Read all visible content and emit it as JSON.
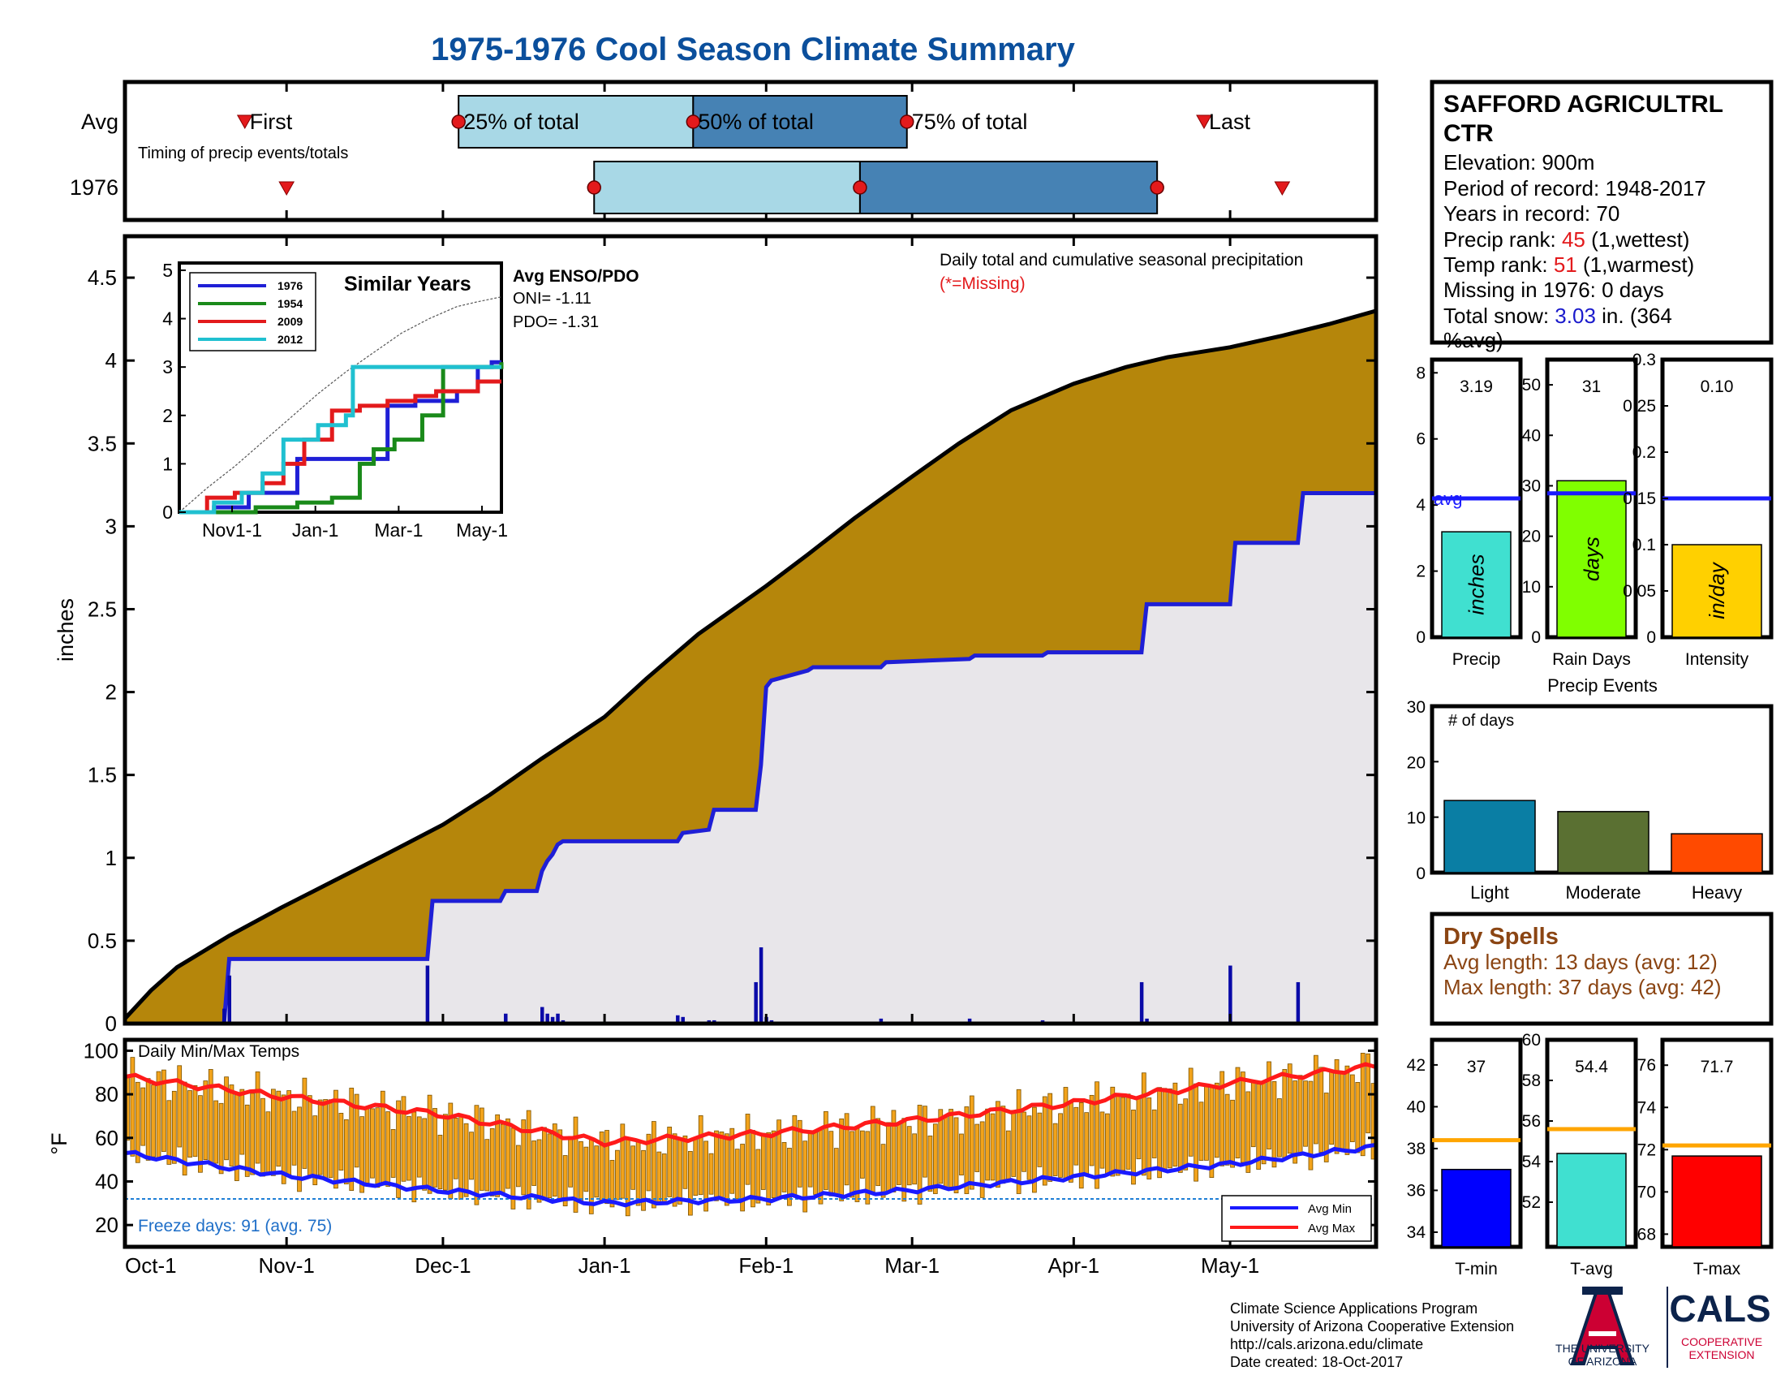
{
  "title": "1975-1976 Cool Season Climate Summary",
  "colors": {
    "title": "#0b4f9c",
    "cum_fill": "#b5860b",
    "obs_fill": "#e8e6ea",
    "obs_line": "#1f1fd6",
    "daily_bar": "#0a0aa8",
    "light_blue": "#a8d8e6",
    "steel_blue": "#4682b4",
    "red": "#e31a1c",
    "orange_bar": "#f2a31b",
    "avg_max": "#ff1a1a",
    "avg_min": "#1a1aff",
    "freeze_line": "#1f7fd6",
    "rank_red": "#e31a1c",
    "snow_blue": "#1a1acc",
    "dry_brown": "#8b4513",
    "precip_bar": "#40e0d0",
    "raindays_bar": "#80ff00",
    "intensity_bar": "#ffd000",
    "light_event": "#0a7ea4",
    "moderate_event": "#5a7032",
    "heavy_event": "#ff4a00",
    "tmin_bar": "#0000ff",
    "tavg_bar": "#40e0d0",
    "tmax_bar": "#ff0000",
    "avg_line_orange": "#ffa500",
    "ua_red": "#cc0033",
    "ua_navy": "#0c234b"
  },
  "timing": {
    "row_labels": [
      "Avg",
      "1976"
    ],
    "note": "Timing of precip events/totals",
    "labels": {
      "first": "First",
      "p25": "25% of total",
      "p50": "50% of total",
      "p75": "75% of total",
      "last": "Last"
    },
    "avg_days": {
      "first": 23,
      "p25": 64,
      "p50": 109,
      "p75": 150,
      "last": 207
    },
    "y1976_days": {
      "first": 31,
      "p25": 90,
      "p50": 141,
      "p75": 198,
      "last": 222
    }
  },
  "main_chart": {
    "ylabel": "inches",
    "annotation_line1": "Daily total and cumulative seasonal precipitation",
    "annotation_line2": "(*=Missing)",
    "ylim": [
      0,
      4.75
    ],
    "yticks": [
      "0",
      "0.5",
      "1",
      "1.5",
      "2",
      "2.5",
      "3",
      "3.5",
      "4",
      "4.5"
    ],
    "ytick_values": [
      0,
      0.5,
      1,
      1.5,
      2,
      2.5,
      3,
      3.5,
      4,
      4.5
    ],
    "days_total": 213,
    "xticks": [
      "Oct-1",
      "Nov-1",
      "Dec-1",
      "Jan-1",
      "Feb-1",
      "Mar-1",
      "Apr-1",
      "May-1"
    ],
    "xtick_days": [
      0,
      31,
      61,
      92,
      123,
      151,
      182,
      212
    ]
  },
  "chart_data": [
    {
      "type": "area",
      "title": "Daily total and cumulative seasonal precipitation",
      "ylabel": "inches",
      "ylim": [
        0,
        4.75
      ],
      "series": [
        {
          "name": "Average cumulative precipitation",
          "x": [
            0,
            5,
            10,
            20,
            30,
            40,
            50,
            61,
            70,
            80,
            92,
            100,
            110,
            123,
            131,
            140,
            151,
            160,
            170,
            182,
            192,
            200,
            212,
            222,
            231,
            240
          ],
          "values": [
            0.03,
            0.2,
            0.34,
            0.53,
            0.7,
            0.86,
            1.02,
            1.2,
            1.38,
            1.6,
            1.85,
            2.08,
            2.35,
            2.64,
            2.83,
            3.05,
            3.3,
            3.5,
            3.7,
            3.86,
            3.96,
            4.02,
            4.08,
            4.15,
            4.22,
            4.3
          ]
        },
        {
          "name": "1976 cumulative precipitation",
          "x": [
            0,
            19,
            20,
            58,
            59,
            72,
            73,
            79,
            80,
            81,
            82,
            83,
            84,
            106,
            107,
            112,
            113,
            121,
            122,
            123,
            124,
            131,
            132,
            145,
            146,
            162,
            163,
            176,
            177,
            195,
            196,
            212,
            213,
            225,
            226,
            240
          ],
          "values": [
            0,
            0,
            0.39,
            0.39,
            0.74,
            0.74,
            0.8,
            0.8,
            0.92,
            0.98,
            1.02,
            1.08,
            1.1,
            1.1,
            1.15,
            1.17,
            1.29,
            1.29,
            1.56,
            2.03,
            2.07,
            2.13,
            2.15,
            2.15,
            2.18,
            2.2,
            2.22,
            2.22,
            2.24,
            2.24,
            2.53,
            2.53,
            2.9,
            2.9,
            3.2,
            3.2
          ]
        },
        {
          "name": "1976 daily precipitation",
          "x": [
            19,
            20,
            58,
            73,
            80,
            81,
            82,
            83,
            84,
            106,
            107,
            112,
            113,
            121,
            122,
            123,
            124,
            131,
            145,
            162,
            176,
            195,
            196,
            212,
            225
          ],
          "values": [
            0.09,
            0.29,
            0.35,
            0.06,
            0.1,
            0.06,
            0.04,
            0.06,
            0.02,
            0.05,
            0.04,
            0.02,
            0.02,
            0.25,
            0.46,
            0.04,
            0.02,
            0.01,
            0.03,
            0.03,
            0.02,
            0.25,
            0.03,
            0.35,
            0.25
          ]
        }
      ]
    },
    {
      "type": "line",
      "title": "Similar Years",
      "ylim": [
        0,
        5
      ],
      "series": [
        {
          "name": "1976",
          "x": [
            0,
            25,
            50,
            65,
            85,
            120,
            150,
            170,
            200,
            215,
            225,
            232
          ],
          "values": [
            0,
            0.1,
            0.4,
            0.4,
            1.1,
            1.1,
            2.2,
            2.3,
            2.5,
            3.0,
            3.1,
            3.1
          ]
        },
        {
          "name": "1954",
          "x": [
            0,
            30,
            55,
            85,
            110,
            130,
            140,
            155,
            175,
            190,
            215,
            232
          ],
          "values": [
            0,
            0.0,
            0.1,
            0.2,
            0.3,
            1.0,
            1.3,
            1.5,
            2.0,
            3.0,
            3.0,
            3.1
          ]
        },
        {
          "name": "2009",
          "x": [
            0,
            20,
            40,
            60,
            75,
            90,
            110,
            130,
            150,
            170,
            185,
            215,
            232
          ],
          "values": [
            0,
            0.3,
            0.4,
            0.6,
            1.0,
            1.5,
            2.1,
            2.2,
            2.3,
            2.4,
            2.5,
            2.7,
            2.7
          ]
        },
        {
          "name": "2012",
          "x": [
            0,
            25,
            45,
            60,
            75,
            100,
            120,
            125,
            160,
            190,
            232
          ],
          "values": [
            0,
            0.2,
            0.4,
            0.8,
            1.5,
            1.8,
            2.0,
            3.0,
            3.0,
            3.0,
            3.0
          ]
        }
      ]
    },
    {
      "type": "bar",
      "title": "Daily Min/Max Temps",
      "ylabel": "°F",
      "ylim": [
        10,
        105
      ],
      "series": [
        {
          "name": "Avg Max",
          "x": [
            0,
            30,
            60,
            92,
            123,
            151,
            182,
            212,
            240
          ],
          "values": [
            88,
            79,
            71,
            58,
            62,
            68,
            76,
            85,
            93
          ]
        },
        {
          "name": "Avg Min",
          "x": [
            0,
            30,
            60,
            92,
            123,
            151,
            182,
            212,
            240
          ],
          "values": [
            53,
            43,
            36,
            30,
            32,
            36,
            42,
            48,
            56
          ]
        }
      ]
    },
    {
      "type": "bar",
      "title": "Precip",
      "categories": [
        "Precip",
        "Rain Days",
        "Intensity"
      ],
      "values": [
        3.19,
        31,
        0.1
      ]
    },
    {
      "type": "bar",
      "title": "Precip Events",
      "categories": [
        "Light",
        "Moderate",
        "Heavy"
      ],
      "values": [
        13,
        11,
        7
      ],
      "ylim": [
        0,
        30
      ]
    },
    {
      "type": "bar",
      "title": "Temperature",
      "categories": [
        "T-min",
        "T-avg",
        "T-max"
      ],
      "values": [
        37,
        54.4,
        71.7
      ]
    }
  ],
  "inset": {
    "title": "Similar Years",
    "legend": [
      "1976",
      "1954",
      "2009",
      "2012"
    ],
    "legend_colors": [
      "#1f1fd6",
      "#1a8a1a",
      "#e31a1c",
      "#20c0d0"
    ],
    "yticks": [
      "0",
      "1",
      "2",
      "3",
      "4",
      "5"
    ],
    "xticks": [
      "Nov1-1",
      "Jan-1",
      "Mar-1",
      "May-1"
    ],
    "avg_line": {
      "x": [
        0,
        20,
        40,
        60,
        80,
        100,
        120,
        140,
        160,
        180,
        200,
        215,
        232
      ],
      "values": [
        0,
        0.5,
        0.95,
        1.45,
        1.95,
        2.45,
        2.9,
        3.3,
        3.7,
        4.0,
        4.25,
        4.35,
        4.45
      ]
    },
    "enso_title": "Avg ENSO/PDO",
    "oni": "ONI= -1.11",
    "pdo": "PDO= -1.31"
  },
  "temps": {
    "title": "Daily Min/Max Temps",
    "ylabel": "°F",
    "yticks": [
      "20",
      "40",
      "60",
      "80",
      "100"
    ],
    "ytick_values": [
      20,
      40,
      60,
      80,
      100
    ],
    "freeze_text": "Freeze days: 91 (avg. 75)",
    "legend_min": "Avg Min",
    "legend_max": "Avg Max"
  },
  "station": {
    "name_line1": "SAFFORD AGRICULTRL",
    "name_line2": "CTR",
    "elevation": "Elevation: 900m",
    "period": "Period of record: 1948-2017",
    "years": "Years in record: 70",
    "precip_rank_label": "Precip rank: ",
    "precip_rank_value": "45",
    "precip_rank_suffix": " (1,wettest)",
    "temp_rank_label": "Temp rank: ",
    "temp_rank_value": "51",
    "temp_rank_suffix": " (1,warmest)",
    "missing": "Missing in 1976: 0 days",
    "snow_label": "Total snow: ",
    "snow_value": "3.03",
    "snow_suffix": " in. (364",
    "snow_suffix2": "%avg)"
  },
  "small_bars": {
    "precip": {
      "value_label": "3.19",
      "value": 3.19,
      "avg": 4.2,
      "ymax": 8.4,
      "yticks": [
        "0",
        "2",
        "4",
        "6",
        "8"
      ],
      "unit": "inches",
      "label": "Precip",
      "avg_label": "avg"
    },
    "raindays": {
      "value_label": "31",
      "value": 31,
      "avg": 28.5,
      "ymax": 55,
      "yticks": [
        "0",
        "10",
        "20",
        "30",
        "40",
        "50"
      ],
      "unit": "days",
      "label": "Rain Days"
    },
    "intensity": {
      "value_label": "0.10",
      "value": 0.1,
      "avg": 0.15,
      "ymax": 0.3,
      "yticks": [
        "0",
        "0.05",
        "0.1",
        "0.15",
        "0.2",
        "0.25",
        "0.3"
      ],
      "unit": "in/day",
      "label": "Intensity"
    }
  },
  "events": {
    "title": "Precip Events",
    "subtitle": "# of days",
    "yticks": [
      "0",
      "10",
      "20",
      "30"
    ],
    "labels": [
      "Light",
      "Moderate",
      "Heavy"
    ],
    "values": [
      13,
      11,
      7
    ]
  },
  "dry": {
    "title": "Dry Spells",
    "avg_line": "Avg length: 13 days (avg: 12)",
    "max_line": "Max length: 37 days (avg: 42)"
  },
  "temp_bars": {
    "tmin": {
      "value_label": "37",
      "value": 37,
      "avg": 38.4,
      "ymin": 33.3,
      "ymax": 43.2,
      "yticks": [
        "34",
        "36",
        "38",
        "40",
        "42"
      ],
      "ytick_values": [
        34,
        36,
        38,
        40,
        42
      ],
      "label": "T-min"
    },
    "tavg": {
      "value_label": "54.4",
      "value": 54.4,
      "avg": 55.6,
      "ymin": 49.8,
      "ymax": 60,
      "yticks": [
        "52",
        "54",
        "56",
        "58",
        "60"
      ],
      "ytick_values": [
        52,
        54,
        56,
        58,
        60
      ],
      "label": "T-avg"
    },
    "tmax": {
      "value_label": "71.7",
      "value": 71.7,
      "avg": 72.2,
      "ymin": 67.4,
      "ymax": 77.2,
      "yticks": [
        "68",
        "70",
        "72",
        "74",
        "76"
      ],
      "ytick_values": [
        68,
        70,
        72,
        74,
        76
      ],
      "label": "T-max"
    }
  },
  "footer": {
    "line1": "Climate Science Applications Program",
    "line2": "University of Arizona Cooperative Extension",
    "line3": "http://cals.arizona.edu/climate",
    "line4": " Date created: 18-Oct-2017"
  },
  "logos": {
    "ua_line1": "THE UNIVERSITY",
    "ua_line2": "OF ARIZONA",
    "cals": "CALS",
    "cals_sub1": "COOPERATIVE",
    "cals_sub2": "EXTENSION"
  }
}
